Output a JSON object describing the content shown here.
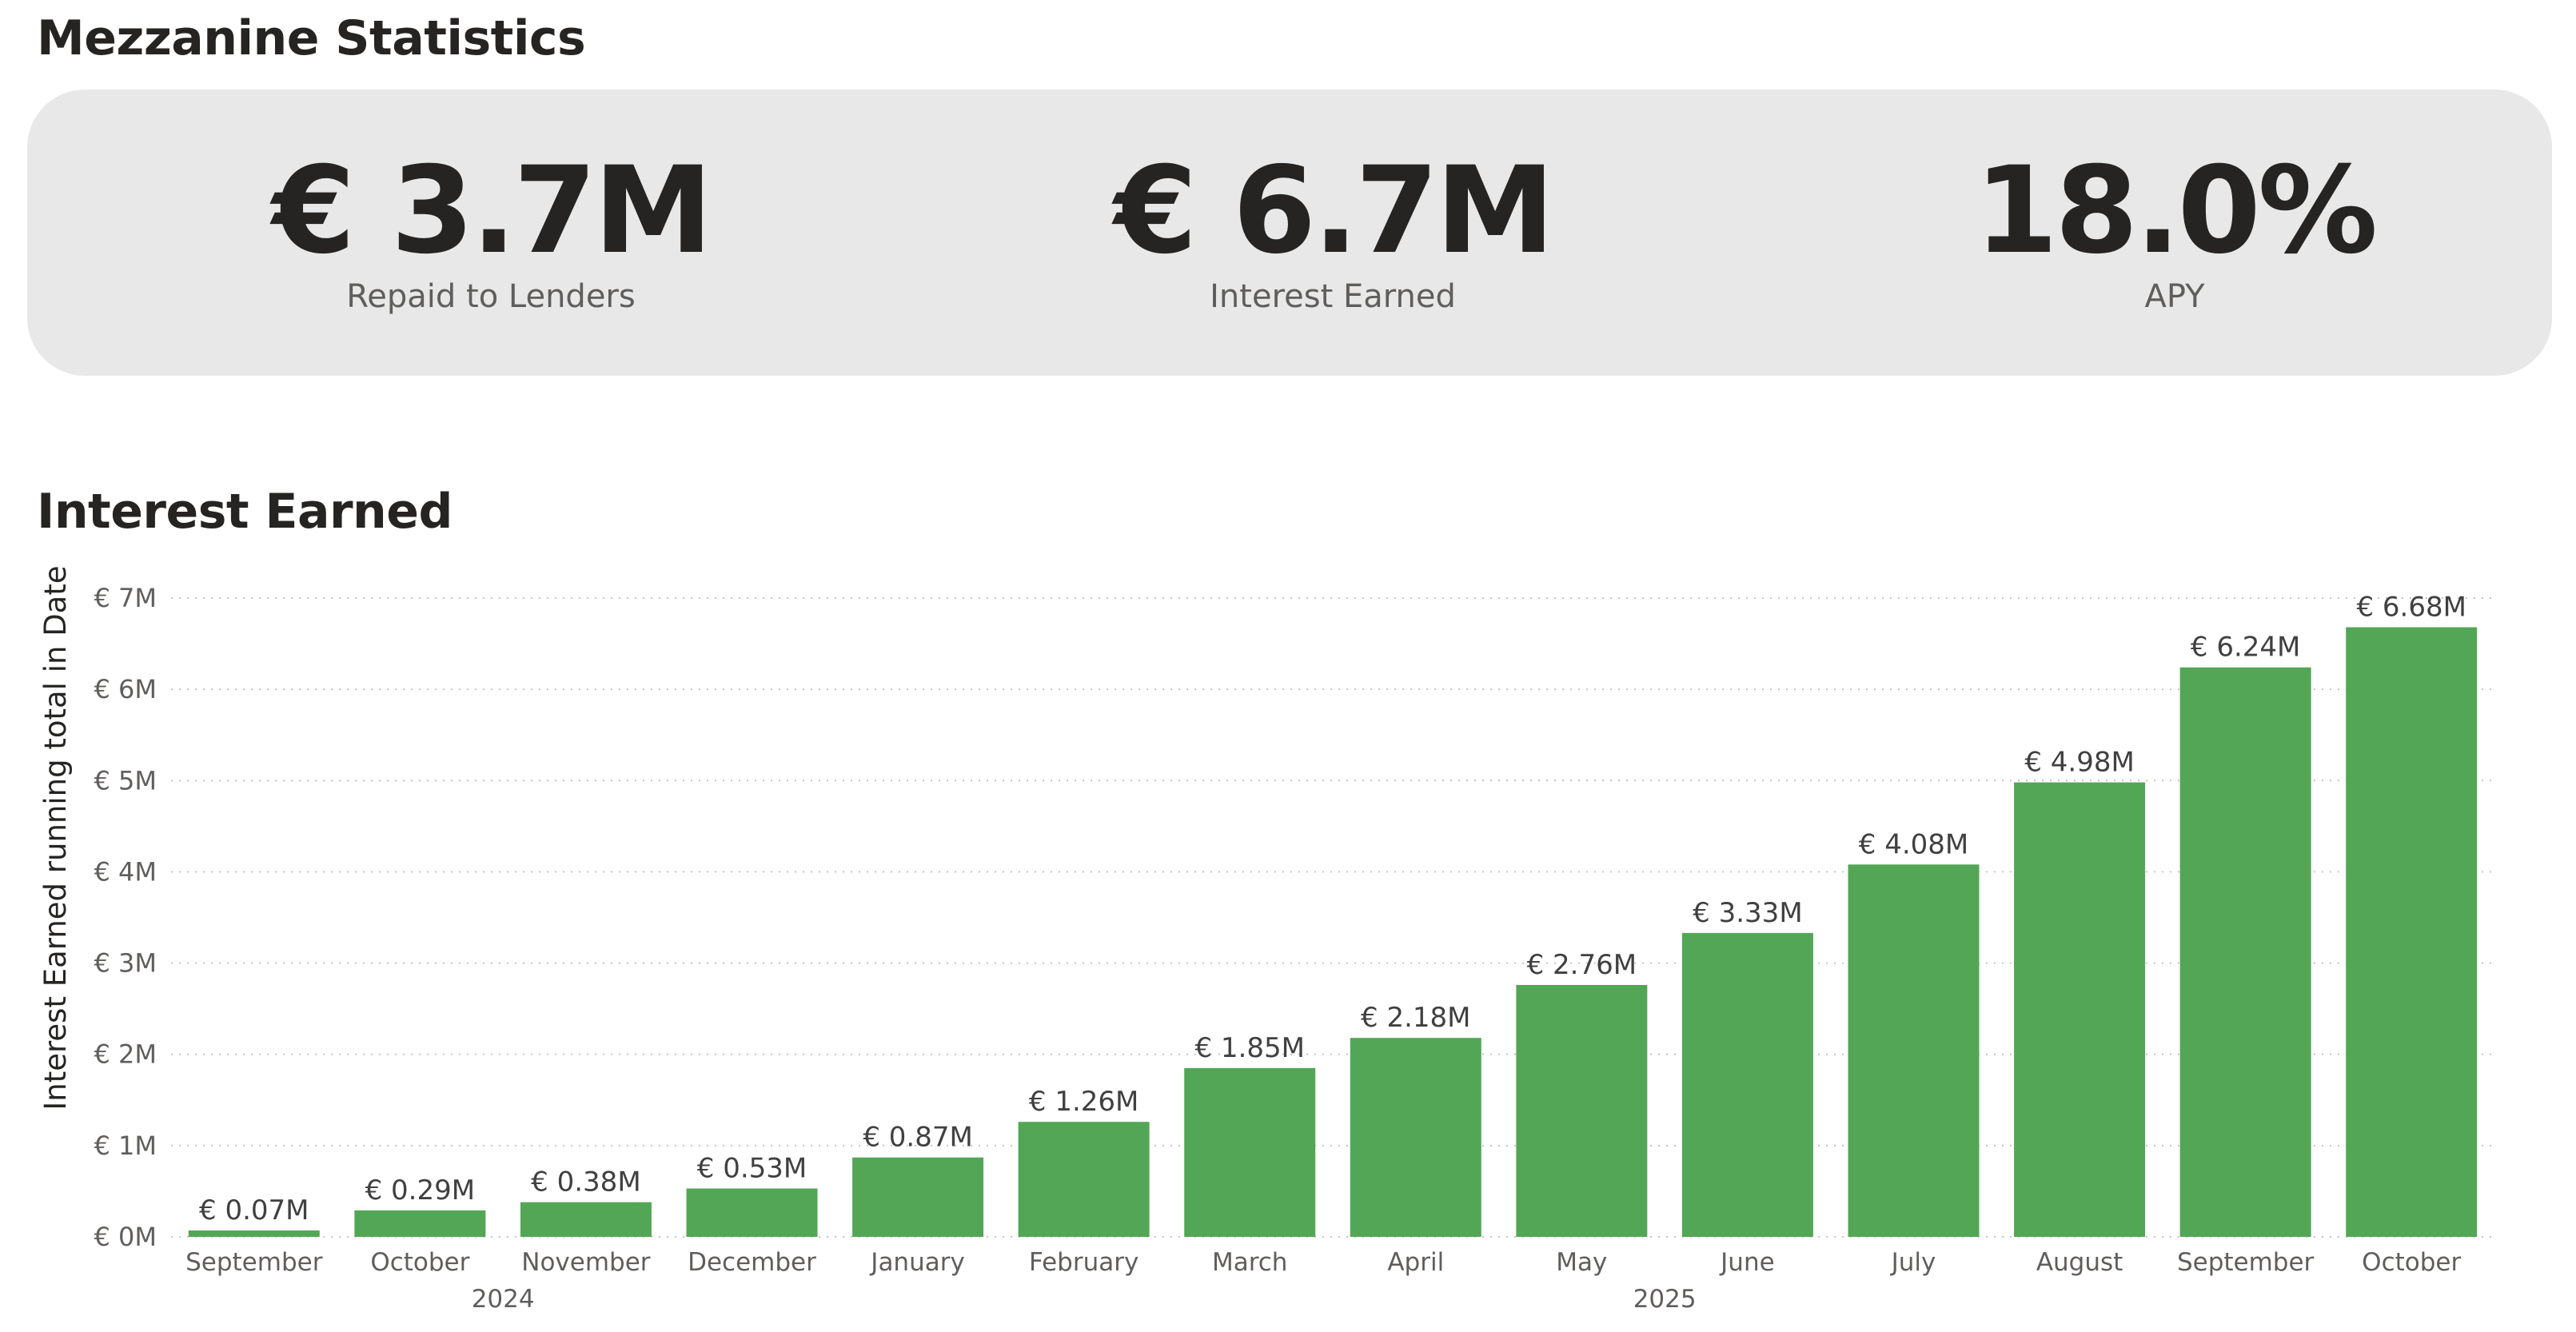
{
  "page": {
    "stats_title": "Mezzanine Statistics",
    "chart_title": "Interest Earned"
  },
  "kpis": [
    {
      "value": "€ 3.7M",
      "label": "Repaid to Lenders"
    },
    {
      "value": "€ 6.7M",
      "label": "Interest Earned"
    },
    {
      "value": "18.0%",
      "label": "APY"
    }
  ],
  "colors": {
    "bar": "#53a655",
    "panel": "#e8e8e8"
  },
  "chart_data": {
    "type": "bar",
    "title": "Interest Earned",
    "ylabel": "Interest Earned running total in Date",
    "xlabel": "",
    "categories": [
      "September",
      "October",
      "November",
      "December",
      "January",
      "February",
      "March",
      "April",
      "May",
      "June",
      "July",
      "August",
      "September",
      "October"
    ],
    "years": [
      {
        "label": "2024",
        "months": 4
      },
      {
        "label": "2025",
        "months": 10
      }
    ],
    "values": [
      0.07,
      0.29,
      0.38,
      0.53,
      0.87,
      1.26,
      1.85,
      2.18,
      2.76,
      3.33,
      4.08,
      4.98,
      6.24,
      6.68
    ],
    "data_labels": [
      "€ 0.07M",
      "€ 0.29M",
      "€ 0.38M",
      "€ 0.53M",
      "€ 0.87M",
      "€ 1.26M",
      "€ 1.85M",
      "€ 2.18M",
      "€ 2.76M",
      "€ 3.33M",
      "€ 4.08M",
      "€ 4.98M",
      "€ 6.24M",
      "€ 6.68M"
    ],
    "ylim": [
      0,
      7
    ],
    "yticks": [
      0,
      1,
      2,
      3,
      4,
      5,
      6,
      7
    ],
    "ytick_labels": [
      "€ 0M",
      "€ 1M",
      "€ 2M",
      "€ 3M",
      "€ 4M",
      "€ 5M",
      "€ 6M",
      "€ 7M"
    ],
    "grid": true,
    "unit": "€ M"
  }
}
